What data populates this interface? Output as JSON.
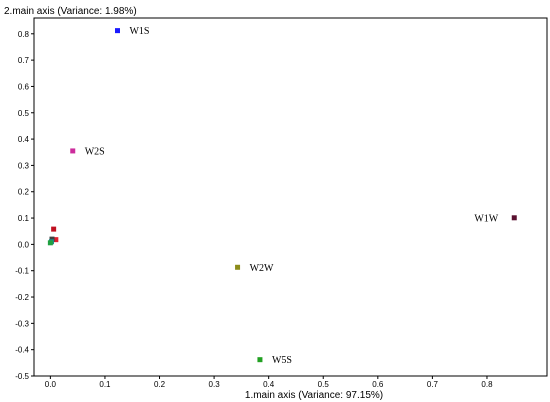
{
  "chart_data": {
    "type": "scatter",
    "xlabel": "1.main axis  (Variance: 97.15%)",
    "ylabel": "2.main axis  (Variance: 1.98%)",
    "xlim": [
      -0.03,
      0.91
    ],
    "ylim": [
      -0.5,
      0.86
    ],
    "xticks": [
      "0.0",
      "0.1",
      "0.2",
      "0.3",
      "0.4",
      "0.5",
      "0.6",
      "0.7",
      "0.8"
    ],
    "yticks": [
      "-0.5",
      "-0.4",
      "-0.3",
      "-0.2",
      "-0.1",
      "0.0",
      "0.1",
      "0.2",
      "0.3",
      "0.4",
      "0.5",
      "0.6",
      "0.7",
      "0.8"
    ],
    "xtick_values": [
      0.0,
      0.1,
      0.2,
      0.3,
      0.4,
      0.5,
      0.6,
      0.7,
      0.8
    ],
    "ytick_values": [
      -0.5,
      -0.4,
      -0.3,
      -0.2,
      -0.1,
      0.0,
      0.1,
      0.2,
      0.3,
      0.4,
      0.5,
      0.6,
      0.7,
      0.8
    ],
    "grid": false,
    "points": [
      {
        "label": "W1S",
        "x": 0.123,
        "y": 0.812,
        "color": "#1a1aff",
        "label_side": "right"
      },
      {
        "label": "W2S",
        "x": 0.041,
        "y": 0.355,
        "color": "#cc2c9c",
        "label_side": "right"
      },
      {
        "label": "W1W",
        "x": 0.85,
        "y": 0.101,
        "color": "#5a1030",
        "label_side": "left"
      },
      {
        "label": "W2W",
        "x": 0.343,
        "y": -0.087,
        "color": "#8c8c1a",
        "label_side": "right"
      },
      {
        "label": "W5S",
        "x": 0.384,
        "y": -0.438,
        "color": "#22a022",
        "label_side": "right"
      },
      {
        "label": "",
        "x": 0.006,
        "y": 0.058,
        "color": "#c01020"
      },
      {
        "label": "",
        "x": 0.01,
        "y": 0.018,
        "color": "#e02030"
      },
      {
        "label": "",
        "x": 0.003,
        "y": 0.02,
        "color": "#404040"
      },
      {
        "label": "",
        "x": 0.002,
        "y": 0.01,
        "color": "#1a8a8a"
      },
      {
        "label": "",
        "x": 0.0,
        "y": 0.006,
        "color": "#20a040"
      }
    ]
  }
}
